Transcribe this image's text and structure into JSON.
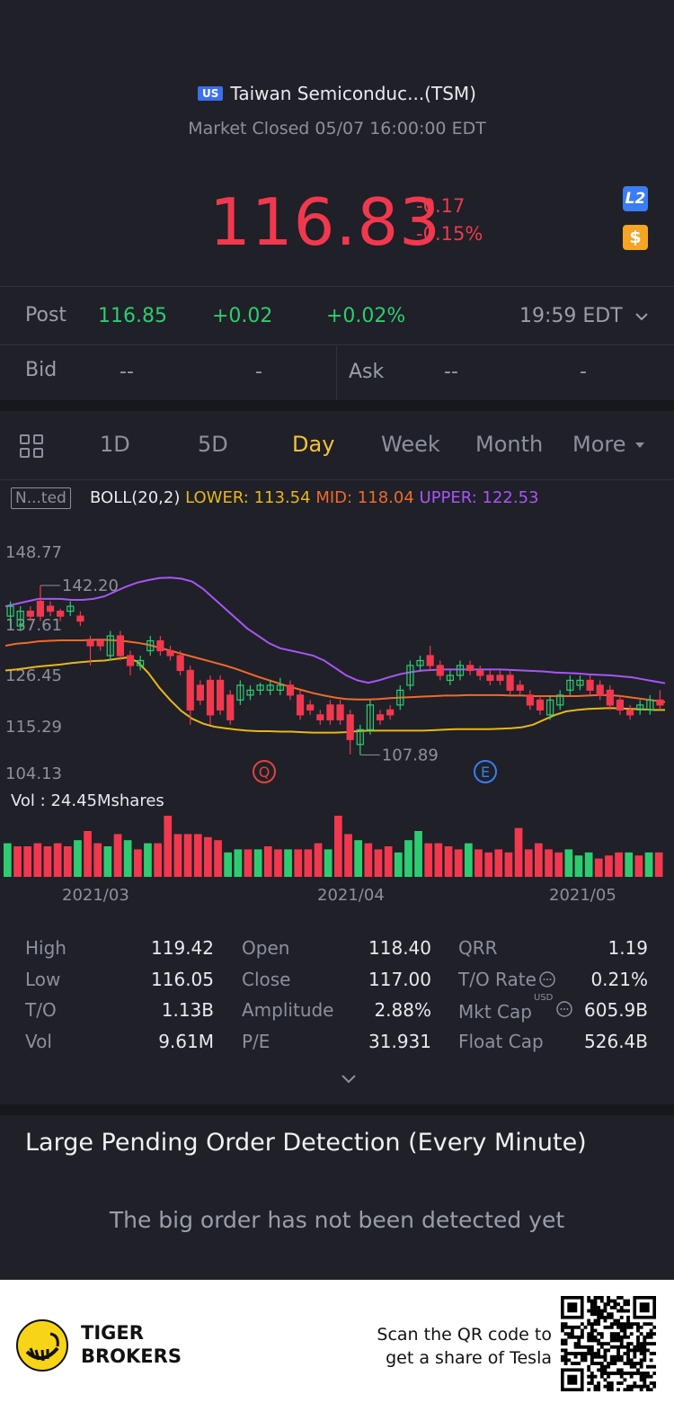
{
  "header": {
    "market_badge": "US",
    "stock_name": "Taiwan Semiconduc...(TSM)",
    "status": "Market Closed 05/07 16:00:00 EDT",
    "price": "116.83",
    "change": "-0.17",
    "change_pct": "-0.15%",
    "l2_badge": "L2",
    "dollar_badge": "$"
  },
  "post": {
    "label": "Post",
    "price": "116.85",
    "change": "+0.02",
    "change_pct": "+0.02%",
    "time": "19:59 EDT"
  },
  "bidask": {
    "bid_label": "Bid",
    "bid_price": "--",
    "bid_size": "-",
    "ask_label": "Ask",
    "ask_price": "--",
    "ask_size": "-"
  },
  "tabs": [
    "1D",
    "5D",
    "Day",
    "Week",
    "Month",
    "More"
  ],
  "active_tab": "Day",
  "indicator": {
    "badge": "N...ted",
    "name": "BOLL(20,2)",
    "lower": "LOWER: 113.54",
    "mid": "MID: 118.04",
    "upper": "UPPER: 122.53"
  },
  "colors": {
    "up": "#2ecc71",
    "down": "#f2384e",
    "upper_band": "#a855f7",
    "mid_band": "#f06a2a",
    "lower_band": "#e8b71a",
    "active_tab": "#f4c23a"
  },
  "chart_data": {
    "type": "candlestick",
    "y_axis_labels": [
      "148.77",
      "137.61",
      "126.45",
      "115.29",
      "104.13"
    ],
    "ylim": [
      104.13,
      148.77
    ],
    "x_labels": [
      "2021/03",
      "2021/04",
      "2021/05"
    ],
    "max_marker": "142.20",
    "min_marker": "107.89",
    "event_markers": [
      "Q",
      "E"
    ],
    "upper_band": [
      138,
      138.5,
      139,
      139.5,
      139.5,
      139.5,
      139.3,
      139.3,
      139.5,
      140,
      141,
      142,
      142.8,
      143.3,
      143.7,
      143.8,
      143.6,
      143,
      141.5,
      139.5,
      137.5,
      135.5,
      133.5,
      132,
      130.5,
      129.5,
      129,
      128.5,
      128,
      127,
      125.5,
      124,
      123,
      122.5,
      123,
      123.7,
      124.3,
      124.7,
      125,
      125.1,
      125.2,
      125.2,
      125.2,
      125.2,
      125.2,
      125.2,
      125.1,
      125,
      124.9,
      124.8,
      124.6,
      124.5,
      124.4,
      124.2,
      124.1,
      124,
      123.8,
      123.6,
      123.2,
      122.8,
      122.4
    ],
    "mid_band": [
      130,
      130.4,
      130.6,
      130.9,
      131,
      131.1,
      131.1,
      131.1,
      131.2,
      131.2,
      131.1,
      130.9,
      130.6,
      130.2,
      129.6,
      129,
      128.4,
      127.8,
      127.2,
      126.6,
      126,
      125.3,
      124.5,
      123.7,
      123,
      122.3,
      121.6,
      121,
      120.4,
      119.9,
      119.5,
      119.2,
      119.1,
      119.1,
      119.2,
      119.4,
      119.5,
      119.6,
      119.7,
      119.8,
      119.9,
      119.9,
      120,
      120,
      120,
      120,
      119.9,
      119.9,
      119.8,
      119.8,
      119.8,
      119.8,
      119.8,
      119.9,
      120,
      120,
      119.8,
      119.5,
      119.2,
      118.9,
      118.6
    ],
    "lower_band": [
      125,
      125.2,
      125.5,
      125.8,
      126,
      126.2,
      126.5,
      126.7,
      126.9,
      127,
      127.3,
      127.6,
      126.8,
      124.5,
      121.5,
      119,
      116.8,
      115.2,
      114.2,
      113.6,
      113.3,
      113,
      112.8,
      112.7,
      112.7,
      112.6,
      112.6,
      112.5,
      112.4,
      112.4,
      112.4,
      112.5,
      112.7,
      112.8,
      112.8,
      112.8,
      112.8,
      112.8,
      112.8,
      112.9,
      113,
      113.1,
      113.1,
      113.1,
      113.1,
      113.2,
      113.3,
      113.5,
      114,
      115,
      116,
      116.7,
      117,
      117.2,
      117.3,
      117.4,
      117.3,
      117.2,
      117.1,
      117,
      117
    ],
    "candles": [
      {
        "o": 136,
        "c": 138,
        "h": 139,
        "l": 134
      },
      {
        "o": 134,
        "c": 137,
        "h": 138,
        "l": 133
      },
      {
        "o": 137,
        "c": 136,
        "h": 138,
        "l": 135
      },
      {
        "o": 139,
        "c": 136,
        "h": 142.2,
        "l": 135
      },
      {
        "o": 138,
        "c": 137,
        "h": 139,
        "l": 136
      },
      {
        "o": 137,
        "c": 136,
        "h": 137.5,
        "l": 135
      },
      {
        "o": 137,
        "c": 138,
        "h": 139,
        "l": 136
      },
      {
        "o": 136,
        "c": 135,
        "h": 137,
        "l": 134
      },
      {
        "o": 131,
        "c": 130,
        "h": 132,
        "l": 126
      },
      {
        "o": 131,
        "c": 130,
        "h": 131.5,
        "l": 129
      },
      {
        "o": 128,
        "c": 132,
        "h": 133,
        "l": 127
      },
      {
        "o": 132,
        "c": 128,
        "h": 133,
        "l": 127
      },
      {
        "o": 128,
        "c": 126,
        "h": 129,
        "l": 124
      },
      {
        "o": 126,
        "c": 127,
        "h": 128,
        "l": 125
      },
      {
        "o": 129,
        "c": 131,
        "h": 132,
        "l": 128
      },
      {
        "o": 131,
        "c": 129,
        "h": 132,
        "l": 128
      },
      {
        "o": 129,
        "c": 128,
        "h": 130,
        "l": 127
      },
      {
        "o": 128,
        "c": 125,
        "h": 129,
        "l": 124
      },
      {
        "o": 125,
        "c": 117,
        "h": 126,
        "l": 114
      },
      {
        "o": 122,
        "c": 119,
        "h": 123,
        "l": 118
      },
      {
        "o": 123,
        "c": 116,
        "h": 124,
        "l": 114
      },
      {
        "o": 123,
        "c": 117,
        "h": 124,
        "l": 116
      },
      {
        "o": 120,
        "c": 115,
        "h": 121,
        "l": 114
      },
      {
        "o": 119,
        "c": 122,
        "h": 123,
        "l": 118
      },
      {
        "o": 120,
        "c": 121,
        "h": 122,
        "l": 119
      },
      {
        "o": 121,
        "c": 122,
        "h": 122.5,
        "l": 120
      },
      {
        "o": 121,
        "c": 122,
        "h": 123,
        "l": 120
      },
      {
        "o": 121,
        "c": 122,
        "h": 123.5,
        "l": 120
      },
      {
        "o": 122,
        "c": 120,
        "h": 123,
        "l": 119
      },
      {
        "o": 120,
        "c": 116,
        "h": 121,
        "l": 115
      },
      {
        "o": 118,
        "c": 117,
        "h": 119,
        "l": 116
      },
      {
        "o": 116,
        "c": 115,
        "h": 117,
        "l": 114
      },
      {
        "o": 118,
        "c": 115,
        "h": 119,
        "l": 114
      },
      {
        "o": 118,
        "c": 115,
        "h": 119,
        "l": 114
      },
      {
        "o": 116,
        "c": 111,
        "h": 117,
        "l": 108
      },
      {
        "o": 110,
        "c": 113,
        "h": 114,
        "l": 107.89
      },
      {
        "o": 113,
        "c": 118,
        "h": 119,
        "l": 112
      },
      {
        "o": 116,
        "c": 115,
        "h": 117,
        "l": 114
      },
      {
        "o": 117,
        "c": 116,
        "h": 118,
        "l": 115
      },
      {
        "o": 118,
        "c": 121,
        "h": 122,
        "l": 117
      },
      {
        "o": 122,
        "c": 126,
        "h": 127,
        "l": 121
      },
      {
        "o": 126,
        "c": 127,
        "h": 128,
        "l": 125
      },
      {
        "o": 128,
        "c": 126,
        "h": 130,
        "l": 125
      },
      {
        "o": 126,
        "c": 124,
        "h": 127,
        "l": 123
      },
      {
        "o": 123,
        "c": 124,
        "h": 125,
        "l": 122
      },
      {
        "o": 124,
        "c": 126,
        "h": 127,
        "l": 123
      },
      {
        "o": 126,
        "c": 125,
        "h": 127,
        "l": 124
      },
      {
        "o": 125,
        "c": 124,
        "h": 126,
        "l": 123
      },
      {
        "o": 124,
        "c": 123,
        "h": 125,
        "l": 122
      },
      {
        "o": 124,
        "c": 123,
        "h": 125,
        "l": 122
      },
      {
        "o": 124,
        "c": 121,
        "h": 125,
        "l": 120
      },
      {
        "o": 122,
        "c": 121,
        "h": 123,
        "l": 120
      },
      {
        "o": 120,
        "c": 118,
        "h": 121,
        "l": 117
      },
      {
        "o": 119,
        "c": 117,
        "h": 120,
        "l": 116
      },
      {
        "o": 116,
        "c": 119,
        "h": 120,
        "l": 115
      },
      {
        "o": 118,
        "c": 120,
        "h": 121,
        "l": 117
      },
      {
        "o": 121,
        "c": 123,
        "h": 124,
        "l": 120
      },
      {
        "o": 122,
        "c": 123,
        "h": 124,
        "l": 121
      },
      {
        "o": 123,
        "c": 121,
        "h": 124,
        "l": 120
      },
      {
        "o": 122,
        "c": 120,
        "h": 123,
        "l": 119
      },
      {
        "o": 121,
        "c": 118,
        "h": 122,
        "l": 117
      },
      {
        "o": 119,
        "c": 117,
        "h": 120,
        "l": 116
      },
      {
        "o": 117,
        "c": 116,
        "h": 118,
        "l": 115
      },
      {
        "o": 117,
        "c": 118,
        "h": 119,
        "l": 116
      },
      {
        "o": 117,
        "c": 119,
        "h": 120,
        "l": 116
      },
      {
        "o": 119,
        "c": 118,
        "h": 121,
        "l": 117
      }
    ],
    "volume_label": "Vol  : 24.45Mshares",
    "volumes": [
      {
        "v": 0.55,
        "up": true
      },
      {
        "v": 0.5,
        "up": false
      },
      {
        "v": 0.5,
        "up": false
      },
      {
        "v": 0.55,
        "up": false
      },
      {
        "v": 0.5,
        "up": false
      },
      {
        "v": 0.55,
        "up": false
      },
      {
        "v": 0.5,
        "up": false
      },
      {
        "v": 0.6,
        "up": true
      },
      {
        "v": 0.75,
        "up": false
      },
      {
        "v": 0.55,
        "up": false
      },
      {
        "v": 0.5,
        "up": true
      },
      {
        "v": 0.7,
        "up": false
      },
      {
        "v": 0.6,
        "up": true
      },
      {
        "v": 0.45,
        "up": false
      },
      {
        "v": 0.55,
        "up": true
      },
      {
        "v": 0.55,
        "up": false
      },
      {
        "v": 1.0,
        "up": false
      },
      {
        "v": 0.7,
        "up": false
      },
      {
        "v": 0.7,
        "up": false
      },
      {
        "v": 0.7,
        "up": false
      },
      {
        "v": 0.65,
        "up": false
      },
      {
        "v": 0.6,
        "up": false
      },
      {
        "v": 0.4,
        "up": true
      },
      {
        "v": 0.45,
        "up": true
      },
      {
        "v": 0.45,
        "up": false
      },
      {
        "v": 0.45,
        "up": true
      },
      {
        "v": 0.5,
        "up": false
      },
      {
        "v": 0.45,
        "up": false
      },
      {
        "v": 0.45,
        "up": true
      },
      {
        "v": 0.45,
        "up": false
      },
      {
        "v": 0.45,
        "up": false
      },
      {
        "v": 0.55,
        "up": false
      },
      {
        "v": 0.45,
        "up": true
      },
      {
        "v": 1.0,
        "up": false
      },
      {
        "v": 0.7,
        "up": false
      },
      {
        "v": 0.6,
        "up": true
      },
      {
        "v": 0.55,
        "up": false
      },
      {
        "v": 0.45,
        "up": false
      },
      {
        "v": 0.5,
        "up": false
      },
      {
        "v": 0.4,
        "up": true
      },
      {
        "v": 0.6,
        "up": true
      },
      {
        "v": 0.75,
        "up": true
      },
      {
        "v": 0.55,
        "up": false
      },
      {
        "v": 0.55,
        "up": false
      },
      {
        "v": 0.5,
        "up": false
      },
      {
        "v": 0.45,
        "up": false
      },
      {
        "v": 0.55,
        "up": true
      },
      {
        "v": 0.45,
        "up": false
      },
      {
        "v": 0.4,
        "up": false
      },
      {
        "v": 0.45,
        "up": false
      },
      {
        "v": 0.4,
        "up": false
      },
      {
        "v": 0.8,
        "up": false
      },
      {
        "v": 0.45,
        "up": false
      },
      {
        "v": 0.55,
        "up": false
      },
      {
        "v": 0.45,
        "up": false
      },
      {
        "v": 0.4,
        "up": false
      },
      {
        "v": 0.45,
        "up": true
      },
      {
        "v": 0.35,
        "up": true
      },
      {
        "v": 0.4,
        "up": true
      },
      {
        "v": 0.3,
        "up": false
      },
      {
        "v": 0.35,
        "up": false
      },
      {
        "v": 0.4,
        "up": false
      },
      {
        "v": 0.4,
        "up": true
      },
      {
        "v": 0.35,
        "up": false
      },
      {
        "v": 0.4,
        "up": true
      },
      {
        "v": 0.4,
        "up": false
      }
    ]
  },
  "stats": [
    [
      {
        "label": "High",
        "value": "119.42"
      },
      {
        "label": "Open",
        "value": "118.40"
      },
      {
        "label": "QRR",
        "value": "1.19"
      }
    ],
    [
      {
        "label": "Low",
        "value": "116.05"
      },
      {
        "label": "Close",
        "value": "117.00"
      },
      {
        "label": "T/O Rate",
        "value": "0.21%"
      }
    ],
    [
      {
        "label": "T/O",
        "value": "1.13B"
      },
      {
        "label": "Amplitude",
        "value": "2.88%"
      },
      {
        "label": "Mkt Cap",
        "value": "605.9B"
      }
    ],
    [
      {
        "label": "Vol",
        "value": "9.61M"
      },
      {
        "label": "P/E",
        "value": "31.931"
      },
      {
        "label": "Float Cap",
        "value": "526.4B"
      }
    ]
  ],
  "mkt_cap_currency": "USD",
  "pending_orders": {
    "title": "Large Pending Order Detection (Every Minute)",
    "empty_message": "The big order has not been detected yet"
  },
  "footer": {
    "brand_line1": "TIGER",
    "brand_line2": "BROKERS",
    "scan_line1": "Scan the QR code to",
    "scan_line2": "get a share of Tesla"
  }
}
